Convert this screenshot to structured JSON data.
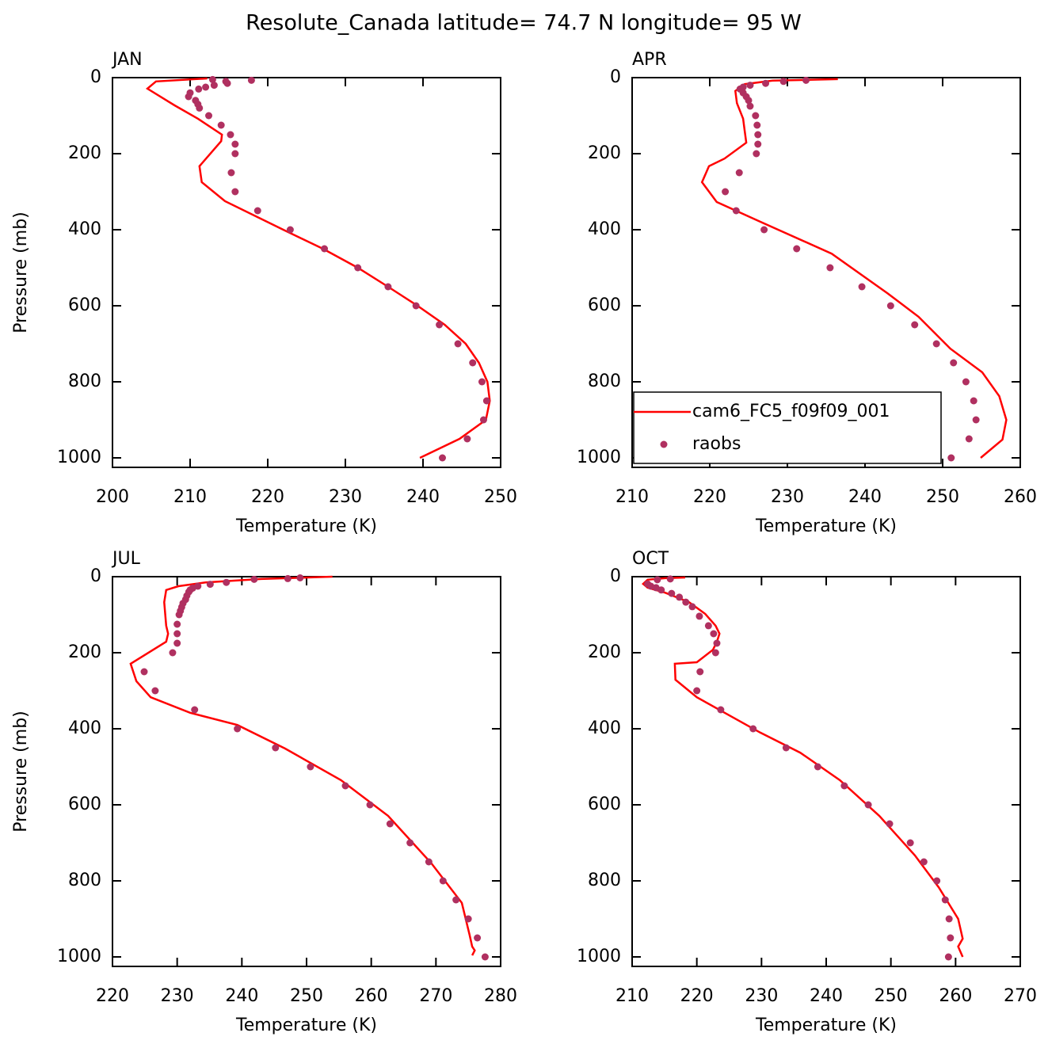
{
  "title": "Resolute_Canada  latitude= 74.7 N longitude= 95 W",
  "chart_data": [
    {
      "type": "line",
      "title": "JAN",
      "xlabel": "Temperature (K)",
      "ylabel": "Pressure (mb)",
      "xlim": [
        200,
        250
      ],
      "xticks": [
        200,
        210,
        220,
        230,
        240,
        250
      ],
      "ylim": [
        1025,
        0
      ],
      "yticks": [
        0,
        200,
        400,
        600,
        800,
        1000
      ],
      "series": [
        {
          "style": "line",
          "color": "#ff0000",
          "x": [
            212.2,
            205.6,
            204.5,
            208.0,
            211.0,
            214.1,
            214.0,
            211.2,
            211.5,
            214.5,
            222.0,
            227.1,
            231.6,
            235.5,
            239.3,
            242.8,
            245.5,
            247.2,
            248.3,
            248.6,
            248.1,
            244.7,
            239.6
          ],
          "y": [
            2,
            10,
            29,
            73,
            108,
            150,
            167,
            233,
            275,
            325,
            400,
            450,
            500,
            550,
            600,
            650,
            700,
            750,
            800,
            850,
            900,
            950,
            1000
          ]
        },
        {
          "style": "markers",
          "color": "#b03060",
          "x": [
            212.9,
            217.9,
            214.6,
            214.8,
            213.1,
            212.0,
            211.1,
            210.0,
            209.8,
            210.7,
            211.0,
            211.2,
            212.4,
            214.0,
            215.2,
            215.8,
            215.8,
            215.3,
            215.8,
            218.7,
            222.9,
            227.3,
            231.6,
            235.5,
            239.1,
            242.1,
            244.5,
            246.4,
            247.6,
            248.2,
            247.8,
            245.7,
            242.5
          ],
          "y": [
            5,
            7,
            10,
            15,
            20,
            25,
            30,
            40,
            50,
            60,
            70,
            80,
            100,
            125,
            150,
            175,
            200,
            250,
            300,
            350,
            400,
            450,
            500,
            550,
            600,
            650,
            700,
            750,
            800,
            850,
            900,
            950,
            1000
          ]
        }
      ]
    },
    {
      "type": "line",
      "title": "APR",
      "xlabel": "Temperature (K)",
      "xlim": [
        210,
        260
      ],
      "xticks": [
        210,
        220,
        230,
        240,
        250,
        260
      ],
      "ylim": [
        1025,
        0
      ],
      "yticks": [
        0,
        200,
        400,
        600,
        800,
        1000
      ],
      "legend": "lower left",
      "series": [
        {
          "name": "cam6_FC5_f09f09_001",
          "style": "line",
          "color": "#ff0000",
          "x": [
            236.5,
            228.1,
            224.5,
            223.3,
            223.5,
            224.3,
            224.5,
            224.7,
            221.9,
            219.9,
            219.0,
            220.9,
            226.5,
            235.7,
            242.9,
            246.9,
            251.0,
            255.1,
            257.3,
            258.2,
            257.7,
            254.9
          ],
          "y": [
            4,
            8,
            17,
            35,
            67,
            108,
            140,
            171,
            213,
            233,
            275,
            327,
            379,
            463,
            567,
            629,
            713,
            775,
            838,
            900,
            952,
            1000
          ]
        },
        {
          "name": "raobs",
          "style": "markers",
          "color": "#b03060",
          "x": [
            232.4,
            229.5,
            227.2,
            225.2,
            224.3,
            223.9,
            224.3,
            224.7,
            225.0,
            225.2,
            225.9,
            226.1,
            226.2,
            226.2,
            226.0,
            223.8,
            222.0,
            223.4,
            227.0,
            231.2,
            235.5,
            239.6,
            243.3,
            246.4,
            249.2,
            251.4,
            253.0,
            254.0,
            254.3,
            253.4,
            251.1
          ],
          "y": [
            7,
            10,
            15,
            20,
            25,
            30,
            40,
            50,
            60,
            75,
            100,
            125,
            150,
            175,
            200,
            250,
            300,
            350,
            400,
            450,
            500,
            550,
            600,
            650,
            700,
            750,
            800,
            850,
            900,
            950,
            1000
          ]
        }
      ]
    },
    {
      "type": "line",
      "title": "JUL",
      "xlabel": "Temperature (K)",
      "ylabel": "Pressure (mb)",
      "xlim": [
        220,
        280
      ],
      "xticks": [
        220,
        230,
        240,
        250,
        260,
        270,
        280
      ],
      "ylim": [
        1025,
        0
      ],
      "yticks": [
        0,
        200,
        400,
        600,
        800,
        1000
      ],
      "series": [
        {
          "style": "line",
          "color": "#ff0000",
          "x": [
            254.0,
            243.0,
            234.4,
            230.2,
            228.3,
            228.0,
            228.3,
            228.6,
            228.3,
            222.8,
            223.7,
            225.9,
            232.0,
            239.3,
            246.7,
            255.3,
            262.6,
            269.3,
            274.0,
            275.2,
            275.6,
            276.0,
            275.6
          ],
          "y": [
            0,
            6,
            15,
            25,
            35,
            67,
            129,
            150,
            171,
            229,
            275,
            317,
            358,
            390,
            452,
            535,
            629,
            754,
            858,
            942,
            973,
            983,
            996
          ]
        },
        {
          "style": "markers",
          "color": "#b03060",
          "x": [
            249.0,
            247.1,
            241.9,
            237.6,
            235.1,
            233.2,
            232.4,
            232.0,
            231.8,
            231.5,
            231.3,
            230.9,
            230.7,
            230.5,
            230.3,
            230.0,
            230.0,
            230.0,
            229.3,
            224.9,
            226.6,
            232.7,
            239.3,
            245.2,
            250.6,
            256.0,
            259.8,
            262.9,
            266.0,
            268.9,
            271.1,
            273.1,
            275.0,
            276.4,
            277.6
          ],
          "y": [
            3,
            5,
            7,
            15,
            20,
            25,
            30,
            35,
            40,
            50,
            60,
            70,
            80,
            90,
            100,
            125,
            150,
            175,
            200,
            250,
            300,
            350,
            400,
            450,
            500,
            550,
            600,
            650,
            700,
            750,
            800,
            850,
            900,
            950,
            1000
          ]
        }
      ]
    },
    {
      "type": "line",
      "title": "OCT",
      "xlabel": "Temperature (K)",
      "xlim": [
        210,
        270
      ],
      "xticks": [
        210,
        220,
        230,
        240,
        250,
        260,
        270
      ],
      "ylim": [
        1025,
        0
      ],
      "yticks": [
        0,
        200,
        400,
        600,
        800,
        1000
      ],
      "series": [
        {
          "style": "line",
          "color": "#ff0000",
          "x": [
            218.2,
            215.1,
            212.4,
            211.7,
            212.4,
            215.1,
            218.8,
            221.3,
            222.9,
            223.5,
            223.1,
            222.5,
            220.0,
            216.6,
            216.7,
            220.0,
            224.3,
            229.8,
            236.0,
            242.1,
            248.2,
            253.7,
            257.4,
            260.4,
            261.1,
            260.4,
            261.1
          ],
          "y": [
            2,
            4,
            8,
            19,
            29,
            42,
            67,
            98,
            129,
            150,
            171,
            192,
            225,
            229,
            271,
            317,
            358,
            410,
            463,
            535,
            629,
            733,
            817,
            900,
            952,
            973,
            1000
          ]
        },
        {
          "style": "markers",
          "color": "#b03060",
          "x": [
            215.9,
            213.9,
            212.4,
            212.9,
            213.7,
            214.5,
            216.1,
            217.3,
            218.3,
            219.3,
            220.4,
            221.8,
            222.6,
            223.1,
            222.9,
            220.5,
            220.0,
            223.7,
            228.7,
            233.8,
            238.7,
            242.8,
            246.5,
            249.8,
            253.0,
            255.1,
            257.1,
            258.4,
            259.0,
            259.2,
            258.9
          ],
          "y": [
            6,
            8,
            19,
            25,
            29,
            35,
            44,
            54,
            67,
            79,
            104,
            129,
            150,
            175,
            200,
            250,
            300,
            350,
            400,
            450,
            500,
            550,
            600,
            650,
            700,
            750,
            800,
            850,
            900,
            950,
            1000
          ]
        }
      ]
    }
  ]
}
